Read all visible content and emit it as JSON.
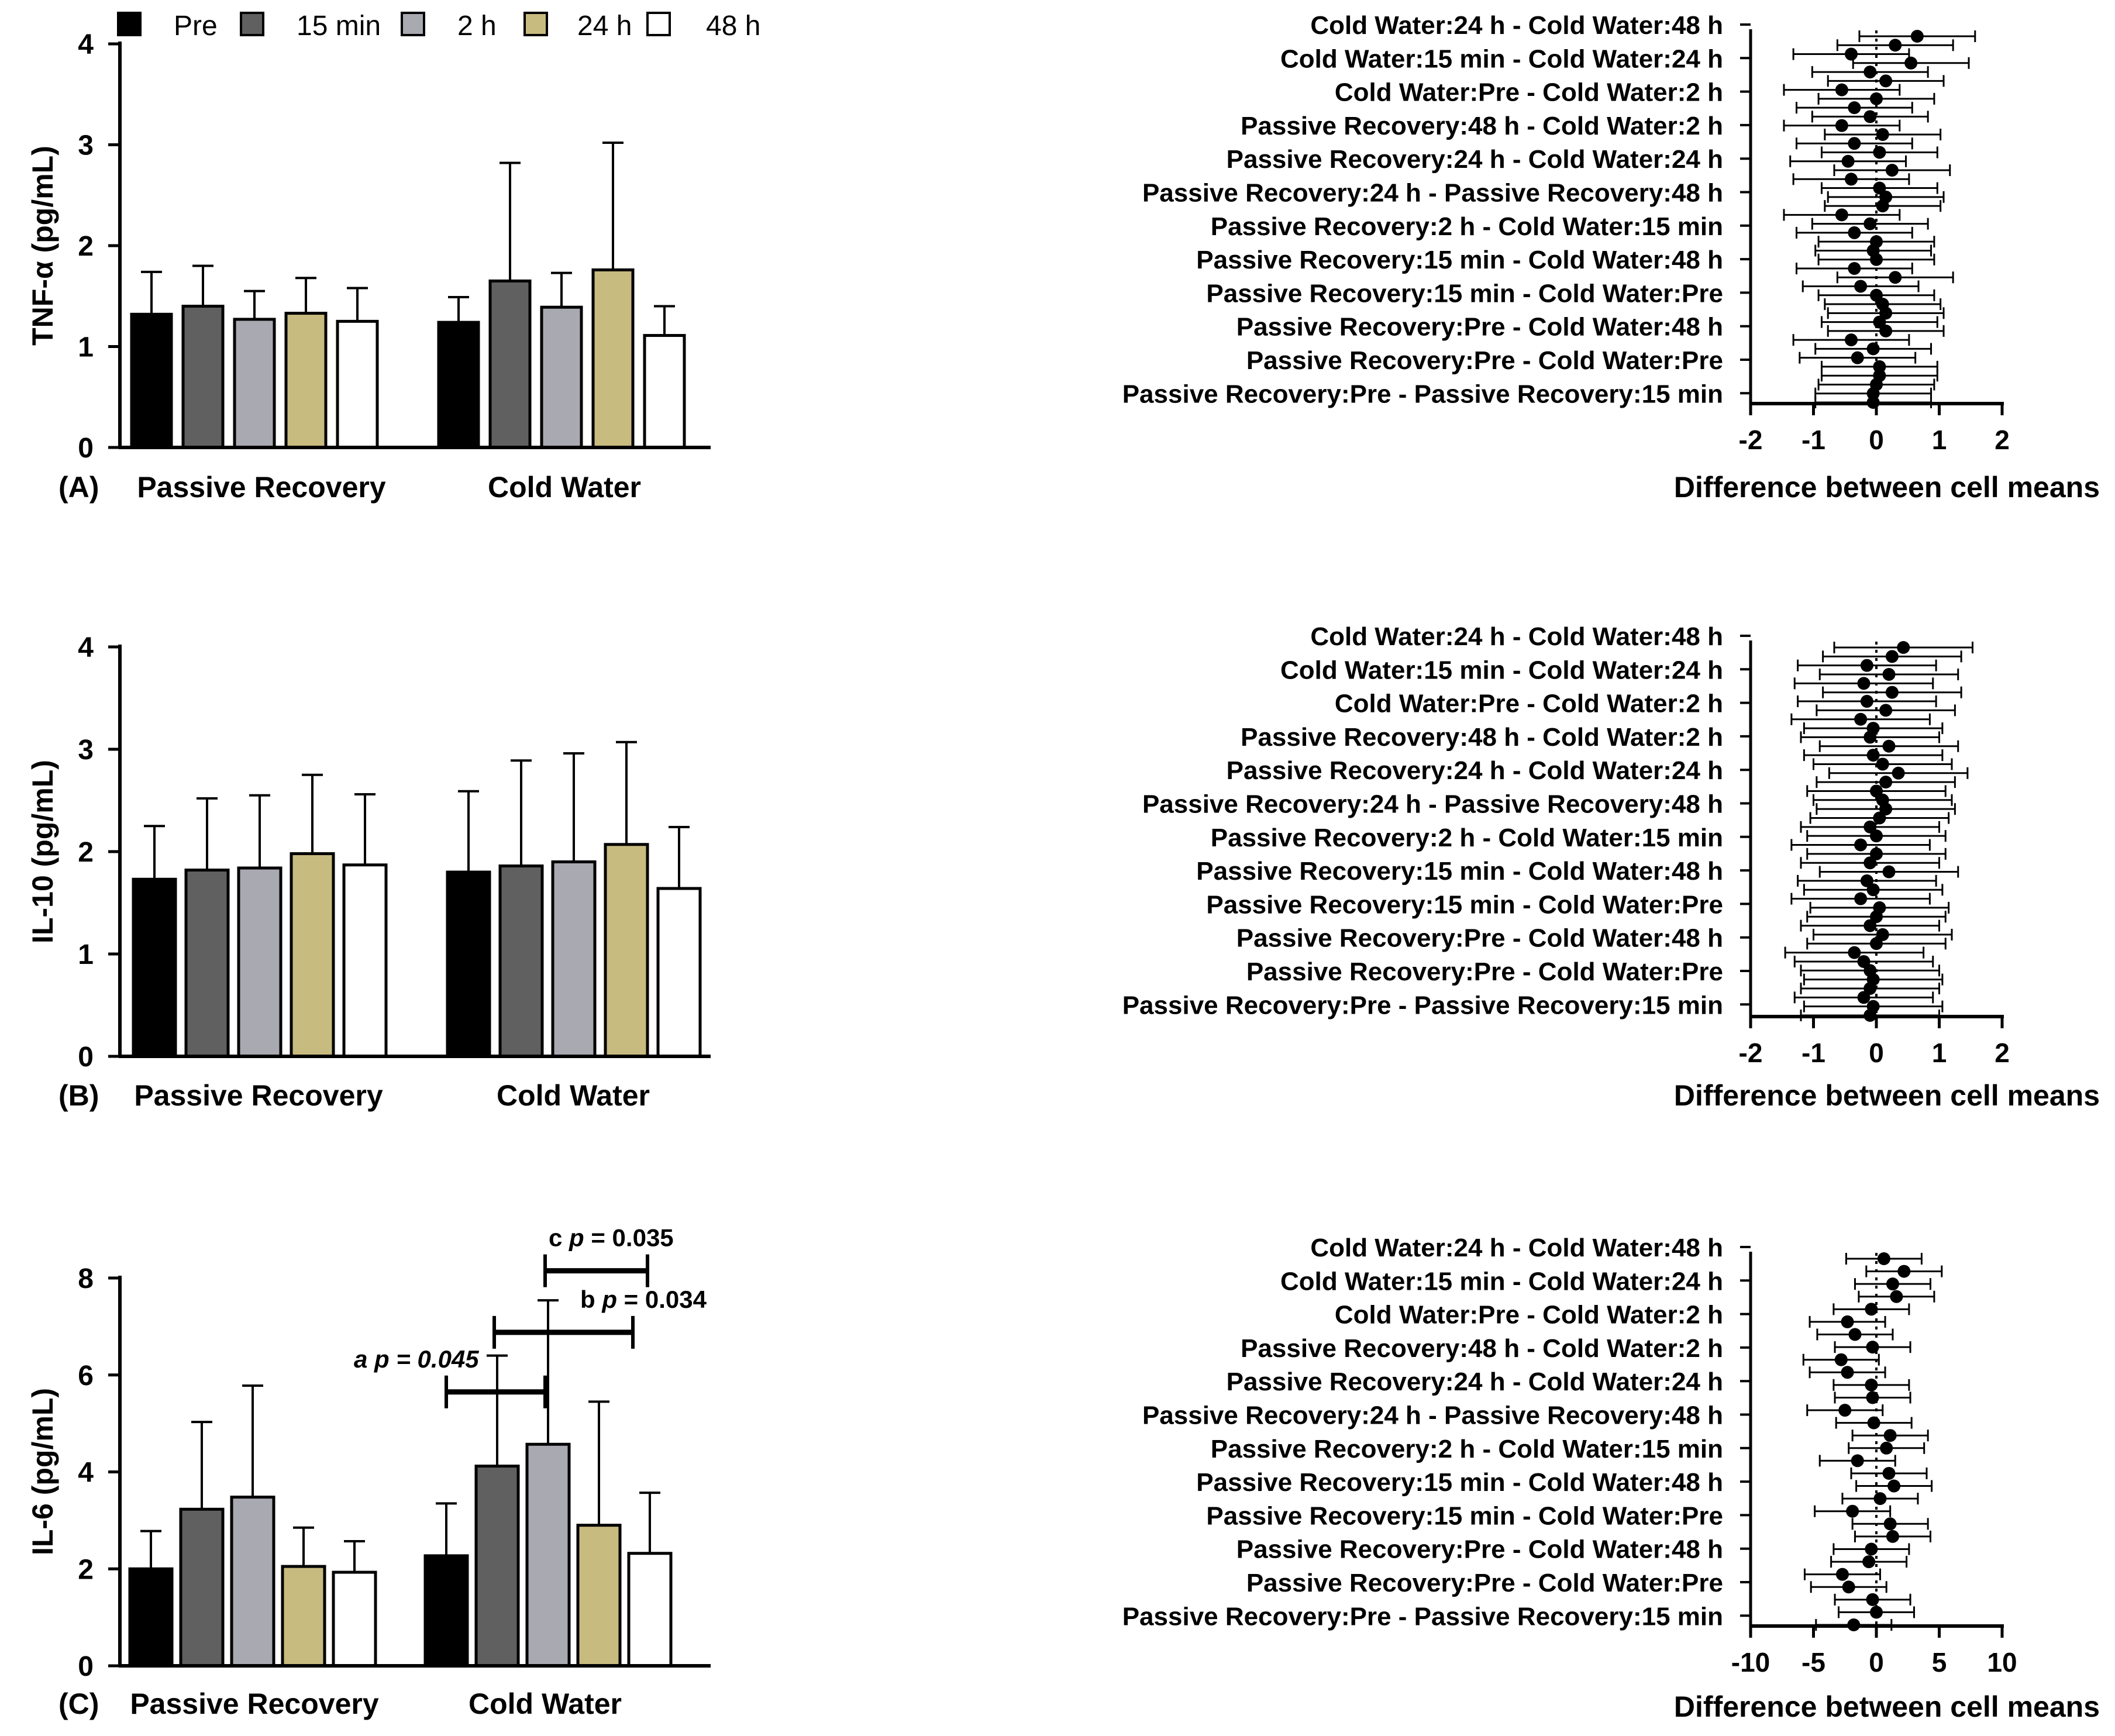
{
  "legend": [
    {
      "label": "Pre",
      "color": "#000000"
    },
    {
      "label": "15 min",
      "color": "#606060"
    },
    {
      "label": "2 h",
      "color": "#a9a9b1"
    },
    {
      "label": "24 h",
      "color": "#c8bb80"
    },
    {
      "label": "48 h",
      "color": "#ffffff"
    }
  ],
  "chart_data": [
    {
      "type": "bar",
      "panel": "(A)",
      "ylabel": "TNF-α (pg/mL)",
      "ylim": [
        0,
        4
      ],
      "yticks": [
        "0",
        "1",
        "2",
        "3",
        "4"
      ],
      "categories": [
        "Passive Recovery",
        "Cold Water"
      ],
      "series": [
        {
          "name": "Pre",
          "values": [
            1.32,
            1.24
          ],
          "errors": [
            0.42,
            0.25
          ]
        },
        {
          "name": "15 min",
          "values": [
            1.4,
            1.65
          ],
          "errors": [
            0.4,
            1.17
          ]
        },
        {
          "name": "2 h",
          "values": [
            1.27,
            1.39
          ],
          "errors": [
            0.28,
            0.34
          ]
        },
        {
          "name": "24 h",
          "values": [
            1.33,
            1.76
          ],
          "errors": [
            0.35,
            1.26
          ]
        },
        {
          "name": "48 h",
          "values": [
            1.25,
            1.11
          ],
          "errors": [
            0.33,
            0.29
          ]
        }
      ],
      "annotations": []
    },
    {
      "type": "bar",
      "panel": "(B)",
      "ylabel": "IL-10 (pg/mL)",
      "ylim": [
        0,
        4
      ],
      "yticks": [
        "0",
        "1",
        "2",
        "3",
        "4"
      ],
      "categories": [
        "Passive Recovery",
        "Cold Water"
      ],
      "series": [
        {
          "name": "Pre",
          "values": [
            1.73,
            1.8
          ],
          "errors": [
            0.52,
            0.79
          ]
        },
        {
          "name": "15 min",
          "values": [
            1.82,
            1.86
          ],
          "errors": [
            0.7,
            1.03
          ]
        },
        {
          "name": "2 h",
          "values": [
            1.84,
            1.9
          ],
          "errors": [
            0.71,
            1.06
          ]
        },
        {
          "name": "24 h",
          "values": [
            1.98,
            2.07
          ],
          "errors": [
            0.77,
            1.0
          ]
        },
        {
          "name": "48 h",
          "values": [
            1.87,
            1.64
          ],
          "errors": [
            0.69,
            0.6
          ]
        }
      ],
      "annotations": []
    },
    {
      "type": "bar",
      "panel": "(C)",
      "ylabel": "IL-6 (pg/mL)",
      "ylim": [
        0,
        8
      ],
      "yticks": [
        "0",
        "2",
        "4",
        "6",
        "8"
      ],
      "categories": [
        "Passive Recovery",
        "Cold Water"
      ],
      "series": [
        {
          "name": "Pre",
          "values": [
            2.0,
            2.27
          ],
          "errors": [
            0.78,
            1.08
          ]
        },
        {
          "name": "15 min",
          "values": [
            3.23,
            4.12
          ],
          "errors": [
            1.8,
            2.28
          ]
        },
        {
          "name": "2 h",
          "values": [
            3.48,
            4.57
          ],
          "errors": [
            2.3,
            2.97
          ]
        },
        {
          "name": "24 h",
          "values": [
            2.05,
            2.9
          ],
          "errors": [
            0.8,
            2.55
          ]
        },
        {
          "name": "48 h",
          "values": [
            1.93,
            2.32
          ],
          "errors": [
            0.64,
            1.25
          ]
        }
      ],
      "annotations": [
        {
          "letter": "a",
          "p_label": "p = 0.045",
          "italic_all": true,
          "y": 5.65
        },
        {
          "letter": "b",
          "p_label": "p = 0.034",
          "italic_all": false,
          "y": 6.88
        },
        {
          "letter": "c",
          "p_label": "p = 0.035",
          "italic_all": false,
          "y": 8.15
        }
      ]
    },
    {
      "type": "forest",
      "panel": "A-right",
      "xlabel": "Difference between cell means",
      "xlim": [
        -2,
        2
      ],
      "xticks": [
        "-2",
        "-1",
        "0",
        "1",
        "2"
      ],
      "labels": [
        "Cold Water:24 h - Cold Water:48 h",
        "Cold Water:15 min - Cold Water:24 h",
        "Cold Water:Pre - Cold Water:2 h",
        "Passive Recovery:48 h - Cold Water:2 h",
        "Passive Recovery:24 h - Cold Water:24 h",
        "Passive Recovery:24 h - Passive Recovery:48 h",
        "Passive Recovery:2 h - Cold Water:15 min",
        "Passive Recovery:15 min - Cold Water:48 h",
        "Passive Recovery:15 min - Cold Water:Pre",
        "Passive Recovery:Pre - Cold Water:48 h",
        "Passive Recovery:Pre - Cold Water:Pre",
        "Passive Recovery:Pre - Passive Recovery:15 min"
      ],
      "points": [
        0.65,
        0.3,
        -0.4,
        0.55,
        -0.1,
        0.15,
        -0.55,
        0.0,
        -0.35,
        -0.1,
        -0.55,
        0.1,
        -0.35,
        0.05,
        -0.45,
        0.25,
        -0.4,
        0.05,
        0.15,
        0.1,
        -0.55,
        -0.1,
        -0.35,
        0.0,
        -0.05,
        0.0,
        -0.35,
        0.3,
        -0.25,
        0.0,
        0.1,
        0.15,
        0.05,
        0.15,
        -0.4,
        -0.05,
        -0.3,
        0.05,
        0.05,
        0.0,
        -0.05,
        -0.05
      ],
      "half_width": 0.92
    },
    {
      "type": "forest",
      "panel": "B-right",
      "xlabel": "Difference between cell means",
      "xlim": [
        -2,
        2
      ],
      "xticks": [
        "-2",
        "-1",
        "0",
        "1",
        "2"
      ],
      "labels": [
        "Cold Water:24 h - Cold Water:48 h",
        "Cold Water:15 min - Cold Water:24 h",
        "Cold Water:Pre - Cold Water:2 h",
        "Passive Recovery:48 h - Cold Water:2 h",
        "Passive Recovery:24 h - Cold Water:24 h",
        "Passive Recovery:24 h - Passive Recovery:48 h",
        "Passive Recovery:2 h - Cold Water:15 min",
        "Passive Recovery:15 min - Cold Water:48 h",
        "Passive Recovery:15 min - Cold Water:Pre",
        "Passive Recovery:Pre - Cold Water:48 h",
        "Passive Recovery:Pre - Cold Water:Pre",
        "Passive Recovery:Pre - Passive Recovery:15 min"
      ],
      "points": [
        0.43,
        0.25,
        -0.15,
        0.2,
        -0.2,
        0.25,
        -0.15,
        0.15,
        -0.25,
        -0.05,
        -0.1,
        0.2,
        -0.05,
        0.1,
        0.35,
        0.15,
        0.0,
        0.1,
        0.15,
        0.05,
        -0.1,
        0.0,
        -0.25,
        0.0,
        -0.1,
        0.2,
        -0.15,
        -0.05,
        -0.25,
        0.05,
        0.0,
        -0.1,
        0.1,
        0.0,
        -0.35,
        -0.2,
        -0.1,
        -0.05,
        -0.1,
        -0.2,
        -0.05,
        -0.1
      ],
      "half_width": 1.1
    },
    {
      "type": "forest",
      "panel": "C-right",
      "xlabel": "Difference between cell means",
      "xlim": [
        -10,
        10
      ],
      "xticks": [
        "-10",
        "-5",
        "0",
        "5",
        "10"
      ],
      "labels": [
        "Cold Water:24 h - Cold Water:48 h",
        "Cold Water:15 min - Cold Water:24 h",
        "Cold Water:Pre - Cold Water:2 h",
        "Passive Recovery:48 h - Cold Water:2 h",
        "Passive Recovery:24 h - Cold Water:24 h",
        "Passive Recovery:24 h - Passive Recovery:48 h",
        "Passive Recovery:2 h - Cold Water:15 min",
        "Passive Recovery:15 min - Cold Water:48 h",
        "Passive Recovery:15 min - Cold Water:Pre",
        "Passive Recovery:Pre - Cold Water:48 h",
        "Passive Recovery:Pre - Cold Water:Pre",
        "Passive Recovery:Pre - Passive Recovery:15 min"
      ],
      "points": [
        0.6,
        2.2,
        1.3,
        1.6,
        -0.4,
        -2.3,
        -1.7,
        -0.3,
        -2.8,
        -2.3,
        -0.4,
        -0.3,
        -2.5,
        -0.2,
        1.1,
        0.8,
        -1.5,
        1.0,
        1.4,
        0.3,
        -1.9,
        1.1,
        1.3,
        -0.4,
        -0.6,
        -2.7,
        -2.2,
        -0.3,
        0.0,
        -1.8
      ],
      "half_width": 3.0
    }
  ]
}
